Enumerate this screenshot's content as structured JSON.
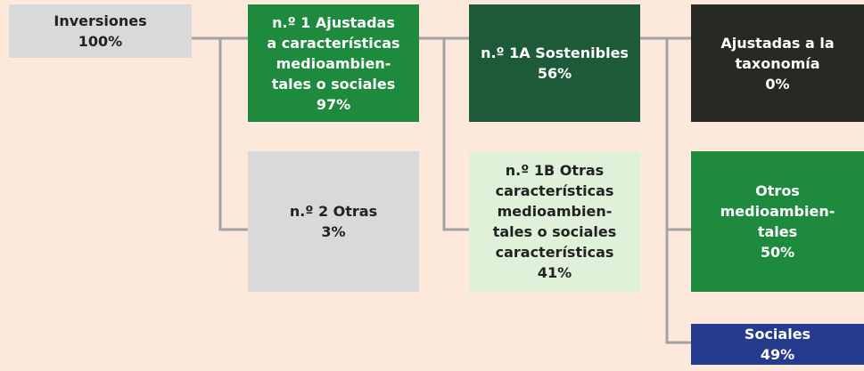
{
  "nodes": [
    {
      "lines": [
        "Inversiones"
      ],
      "value": "100%"
    },
    {
      "lines": [
        "n.º 1 Ajustadas",
        "a características",
        "medioambien-",
        "tales o sociales"
      ],
      "value": "97%"
    },
    {
      "lines": [
        "n.º 2 Otras"
      ],
      "value": "3%"
    },
    {
      "lines": [
        "n.º 1A Sostenibles"
      ],
      "value": "56%"
    },
    {
      "lines": [
        "n.º 1B Otras",
        "características",
        "medioambien-",
        "tales o sociales",
        "características"
      ],
      "value": "41%"
    },
    {
      "lines": [
        "Ajustadas a la",
        "taxonomía"
      ],
      "value": "0%"
    },
    {
      "lines": [
        "Otros",
        "medioambien-",
        "tales"
      ],
      "value": "50%"
    },
    {
      "lines": [
        "Sociales"
      ],
      "value": "49%"
    }
  ]
}
